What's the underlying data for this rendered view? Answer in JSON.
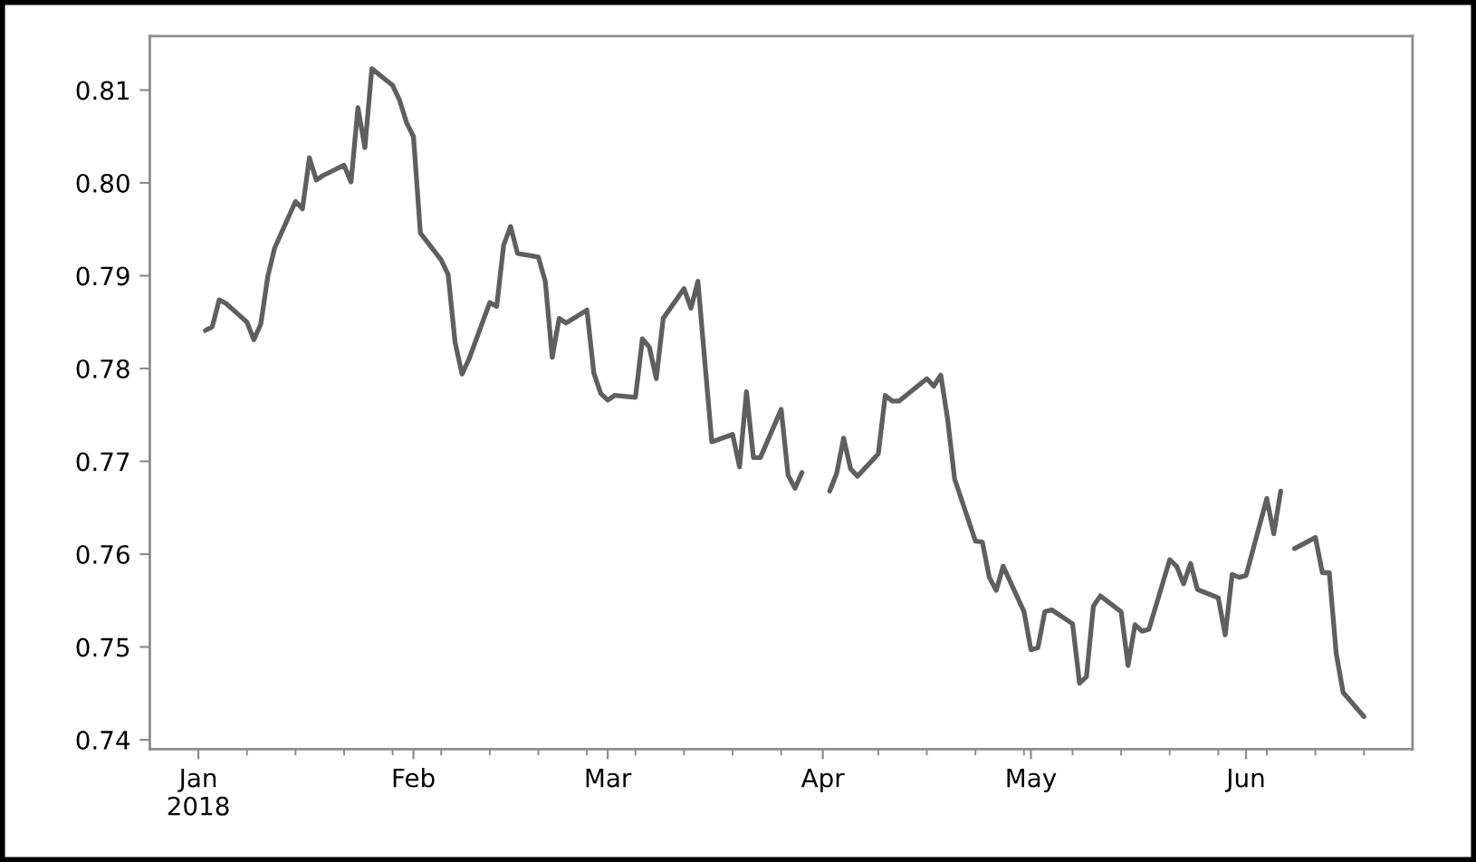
{
  "chart_data": {
    "type": "line",
    "x": [
      "2018-01-02",
      "2018-01-03",
      "2018-01-04",
      "2018-01-05",
      "2018-01-08",
      "2018-01-09",
      "2018-01-10",
      "2018-01-11",
      "2018-01-12",
      "2018-01-15",
      "2018-01-16",
      "2018-01-17",
      "2018-01-18",
      "2018-01-19",
      "2018-01-22",
      "2018-01-23",
      "2018-01-24",
      "2018-01-25",
      "2018-01-26",
      "2018-01-29",
      "2018-01-30",
      "2018-01-31",
      "2018-02-01",
      "2018-02-02",
      "2018-02-05",
      "2018-02-06",
      "2018-02-07",
      "2018-02-08",
      "2018-02-09",
      "2018-02-12",
      "2018-02-13",
      "2018-02-14",
      "2018-02-15",
      "2018-02-16",
      "2018-02-19",
      "2018-02-20",
      "2018-02-21",
      "2018-02-22",
      "2018-02-23",
      "2018-02-26",
      "2018-02-27",
      "2018-02-28",
      "2018-03-01",
      "2018-03-02",
      "2018-03-05",
      "2018-03-06",
      "2018-03-07",
      "2018-03-08",
      "2018-03-09",
      "2018-03-12",
      "2018-03-13",
      "2018-03-14",
      "2018-03-15",
      "2018-03-16",
      "2018-03-19",
      "2018-03-20",
      "2018-03-21",
      "2018-03-22",
      "2018-03-23",
      "2018-03-26",
      "2018-03-27",
      "2018-03-28",
      "2018-03-29",
      "2018-03-30",
      "2018-04-02",
      "2018-04-03",
      "2018-04-04",
      "2018-04-05",
      "2018-04-06",
      "2018-04-09",
      "2018-04-10",
      "2018-04-11",
      "2018-04-12",
      "2018-04-13",
      "2018-04-16",
      "2018-04-17",
      "2018-04-18",
      "2018-04-19",
      "2018-04-20",
      "2018-04-23",
      "2018-04-24",
      "2018-04-25",
      "2018-04-26",
      "2018-04-27",
      "2018-04-30",
      "2018-05-01",
      "2018-05-02",
      "2018-05-03",
      "2018-05-04",
      "2018-05-07",
      "2018-05-08",
      "2018-05-09",
      "2018-05-10",
      "2018-05-11",
      "2018-05-14",
      "2018-05-15",
      "2018-05-16",
      "2018-05-17",
      "2018-05-18",
      "2018-05-21",
      "2018-05-22",
      "2018-05-23",
      "2018-05-24",
      "2018-05-25",
      "2018-05-28",
      "2018-05-29",
      "2018-05-30",
      "2018-05-31",
      "2018-06-01",
      "2018-06-04",
      "2018-06-05",
      "2018-06-06",
      "2018-06-07",
      "2018-06-08",
      "2018-06-11",
      "2018-06-12",
      "2018-06-13",
      "2018-06-14",
      "2018-06-15",
      "2018-06-18"
    ],
    "series": [
      {
        "color": "#5f5f5f",
        "values": [
          0.7841,
          0.7845,
          0.7874,
          0.787,
          0.785,
          0.7831,
          0.7848,
          0.7899,
          0.793,
          0.798,
          0.7972,
          0.8027,
          0.8003,
          0.8008,
          0.8019,
          0.8001,
          0.8081,
          0.8038,
          0.8123,
          0.8105,
          0.8089,
          0.8065,
          0.805,
          0.7946,
          0.7917,
          0.7901,
          0.7828,
          0.7794,
          0.781,
          0.7871,
          0.7867,
          0.7933,
          0.7953,
          0.7924,
          0.792,
          0.7894,
          0.7812,
          0.7854,
          0.7849,
          0.7863,
          0.7795,
          0.7773,
          0.7766,
          0.7771,
          0.7769,
          0.7832,
          0.7823,
          0.7789,
          0.7854,
          0.7886,
          0.7865,
          0.7894,
          0.7807,
          0.7721,
          0.7729,
          0.7694,
          0.7775,
          0.7704,
          0.7704,
          0.7756,
          0.7685,
          0.7671,
          0.7688,
          null,
          0.7668,
          0.7687,
          0.7725,
          0.7692,
          0.7684,
          0.7708,
          0.7771,
          0.7765,
          0.7765,
          0.7771,
          0.7789,
          0.7781,
          0.7793,
          0.7745,
          0.7681,
          0.7614,
          0.7613,
          0.7575,
          0.7561,
          0.7587,
          0.7538,
          0.7497,
          0.7499,
          0.7538,
          0.754,
          0.7525,
          0.7461,
          0.7468,
          0.7544,
          0.7555,
          0.7538,
          0.748,
          0.7524,
          0.7517,
          0.7519,
          0.7594,
          0.7587,
          0.7568,
          0.759,
          0.7562,
          0.7553,
          0.7513,
          0.7578,
          0.7575,
          0.7577,
          0.766,
          0.7622,
          0.7668,
          null,
          0.7606,
          0.7618,
          0.758,
          0.758,
          0.7493,
          0.7451,
          0.7425
        ]
      }
    ],
    "xlim": [
      "2017-12-25",
      "2018-06-25"
    ],
    "xticks": [
      {
        "value": "2018-01-01",
        "label": "Jan\n2018"
      },
      {
        "value": "2018-01-08",
        "label": null
      },
      {
        "value": "2018-01-15",
        "label": null
      },
      {
        "value": "2018-01-22",
        "label": null
      },
      {
        "value": "2018-01-29",
        "label": null
      },
      {
        "value": "2018-02-01",
        "label": "Feb"
      },
      {
        "value": "2018-02-05",
        "label": null
      },
      {
        "value": "2018-02-12",
        "label": null
      },
      {
        "value": "2018-02-19",
        "label": null
      },
      {
        "value": "2018-02-26",
        "label": null
      },
      {
        "value": "2018-03-01",
        "label": "Mar"
      },
      {
        "value": "2018-03-05",
        "label": null
      },
      {
        "value": "2018-03-12",
        "label": null
      },
      {
        "value": "2018-03-19",
        "label": null
      },
      {
        "value": "2018-03-26",
        "label": null
      },
      {
        "value": "2018-04-01",
        "label": "Apr"
      },
      {
        "value": "2018-04-09",
        "label": null
      },
      {
        "value": "2018-04-16",
        "label": null
      },
      {
        "value": "2018-04-23",
        "label": null
      },
      {
        "value": "2018-04-30",
        "label": null
      },
      {
        "value": "2018-05-01",
        "label": "May"
      },
      {
        "value": "2018-05-07",
        "label": null
      },
      {
        "value": "2018-05-14",
        "label": null
      },
      {
        "value": "2018-05-21",
        "label": null
      },
      {
        "value": "2018-05-28",
        "label": null
      },
      {
        "value": "2018-06-01",
        "label": "Jun"
      },
      {
        "value": "2018-06-04",
        "label": null
      },
      {
        "value": "2018-06-11",
        "label": null
      },
      {
        "value": "2018-06-18",
        "label": null
      }
    ],
    "ylim": [
      0.739,
      0.8158
    ],
    "yticks": [
      0.74,
      0.75,
      0.76,
      0.77,
      0.78,
      0.79,
      {
        "value": 0.8,
        "label": "0.80"
      },
      0.81
    ]
  }
}
